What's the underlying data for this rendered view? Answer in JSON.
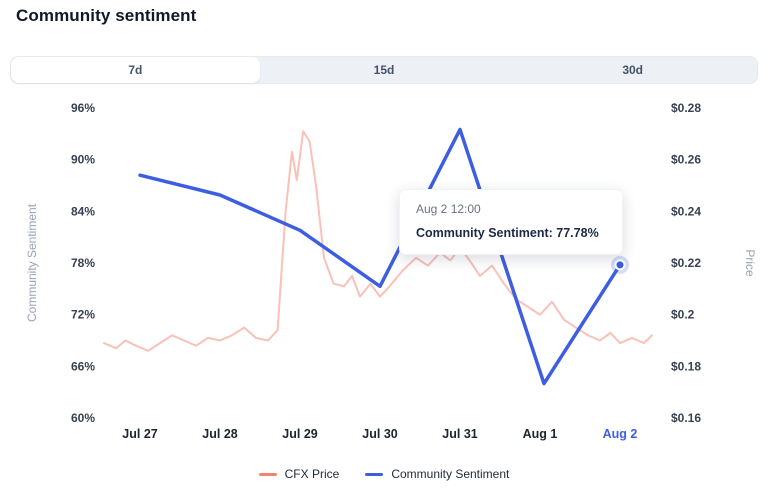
{
  "title": "Community sentiment",
  "tabs": [
    {
      "label": "7d",
      "active": true
    },
    {
      "label": "15d",
      "active": false
    },
    {
      "label": "30d",
      "active": false
    }
  ],
  "colors": {
    "sentiment_blue": "#3d5ee1",
    "price_salmon_line": "#fac2b7",
    "price_salmon_legend": "#f4846f",
    "active_x_label": "#3d5ee1",
    "tab_bar_bg": "#edf0f4",
    "axis_title_gray": "#9aa3b2",
    "tick_text": "#374151"
  },
  "chart_data": {
    "type": "line",
    "title": "Community sentiment",
    "x_categories": [
      "Jul 27",
      "Jul 28",
      "Jul 29",
      "Jul 30",
      "Jul 31",
      "Aug 1",
      "Aug 2"
    ],
    "left_axis": {
      "label": "Community Sentiment",
      "ticks": [
        "96%",
        "90%",
        "84%",
        "78%",
        "72%",
        "66%",
        "60%"
      ],
      "range": [
        60,
        96
      ]
    },
    "right_axis": {
      "label": "Price",
      "ticks": [
        "$0.28",
        "$0.26",
        "$0.24",
        "$0.22",
        "$0.2",
        "$0.18",
        "$0.16"
      ],
      "range": [
        0.16,
        0.28
      ]
    },
    "grid": false,
    "legend_position": "bottom",
    "series": [
      {
        "name": "CFX Price",
        "axis": "right",
        "color": "#f4846f",
        "line_opacity": 0.5,
        "points": [
          [
            -0.45,
            0.189
          ],
          [
            -0.3,
            0.187
          ],
          [
            -0.18,
            0.19
          ],
          [
            -0.05,
            0.188
          ],
          [
            0.1,
            0.186
          ],
          [
            0.25,
            0.189
          ],
          [
            0.4,
            0.192
          ],
          [
            0.55,
            0.19
          ],
          [
            0.7,
            0.188
          ],
          [
            0.85,
            0.191
          ],
          [
            1.0,
            0.19
          ],
          [
            1.15,
            0.192
          ],
          [
            1.3,
            0.195
          ],
          [
            1.45,
            0.191
          ],
          [
            1.6,
            0.19
          ],
          [
            1.72,
            0.194
          ],
          [
            1.82,
            0.24
          ],
          [
            1.9,
            0.263
          ],
          [
            1.96,
            0.252
          ],
          [
            2.04,
            0.271
          ],
          [
            2.12,
            0.267
          ],
          [
            2.2,
            0.25
          ],
          [
            2.3,
            0.222
          ],
          [
            2.42,
            0.212
          ],
          [
            2.55,
            0.211
          ],
          [
            2.65,
            0.215
          ],
          [
            2.75,
            0.207
          ],
          [
            2.88,
            0.212
          ],
          [
            3.0,
            0.207
          ],
          [
            3.12,
            0.211
          ],
          [
            3.28,
            0.217
          ],
          [
            3.45,
            0.222
          ],
          [
            3.6,
            0.219
          ],
          [
            3.75,
            0.224
          ],
          [
            3.88,
            0.221
          ],
          [
            4.0,
            0.226
          ],
          [
            4.12,
            0.221
          ],
          [
            4.25,
            0.215
          ],
          [
            4.4,
            0.219
          ],
          [
            4.55,
            0.212
          ],
          [
            4.7,
            0.206
          ],
          [
            4.85,
            0.203
          ],
          [
            5.0,
            0.2
          ],
          [
            5.15,
            0.205
          ],
          [
            5.3,
            0.198
          ],
          [
            5.45,
            0.195
          ],
          [
            5.6,
            0.192
          ],
          [
            5.75,
            0.19
          ],
          [
            5.88,
            0.193
          ],
          [
            6.0,
            0.189
          ],
          [
            6.15,
            0.191
          ],
          [
            6.3,
            0.189
          ],
          [
            6.4,
            0.192
          ]
        ]
      },
      {
        "name": "Community Sentiment",
        "axis": "left",
        "color": "#3d5ee1",
        "line_opacity": 1,
        "points": [
          [
            0,
            88.2
          ],
          [
            1,
            85.9
          ],
          [
            2,
            81.8
          ],
          [
            3,
            75.3
          ],
          [
            4,
            93.5
          ],
          [
            5.05,
            64.0
          ],
          [
            6,
            77.78
          ]
        ],
        "marker_at": [
          6,
          77.78
        ]
      }
    ],
    "highlight": {
      "x_label": "Aug 2",
      "tooltip_header": "Aug 2 12:00",
      "tooltip_value": "Community Sentiment: 77.78%"
    }
  }
}
